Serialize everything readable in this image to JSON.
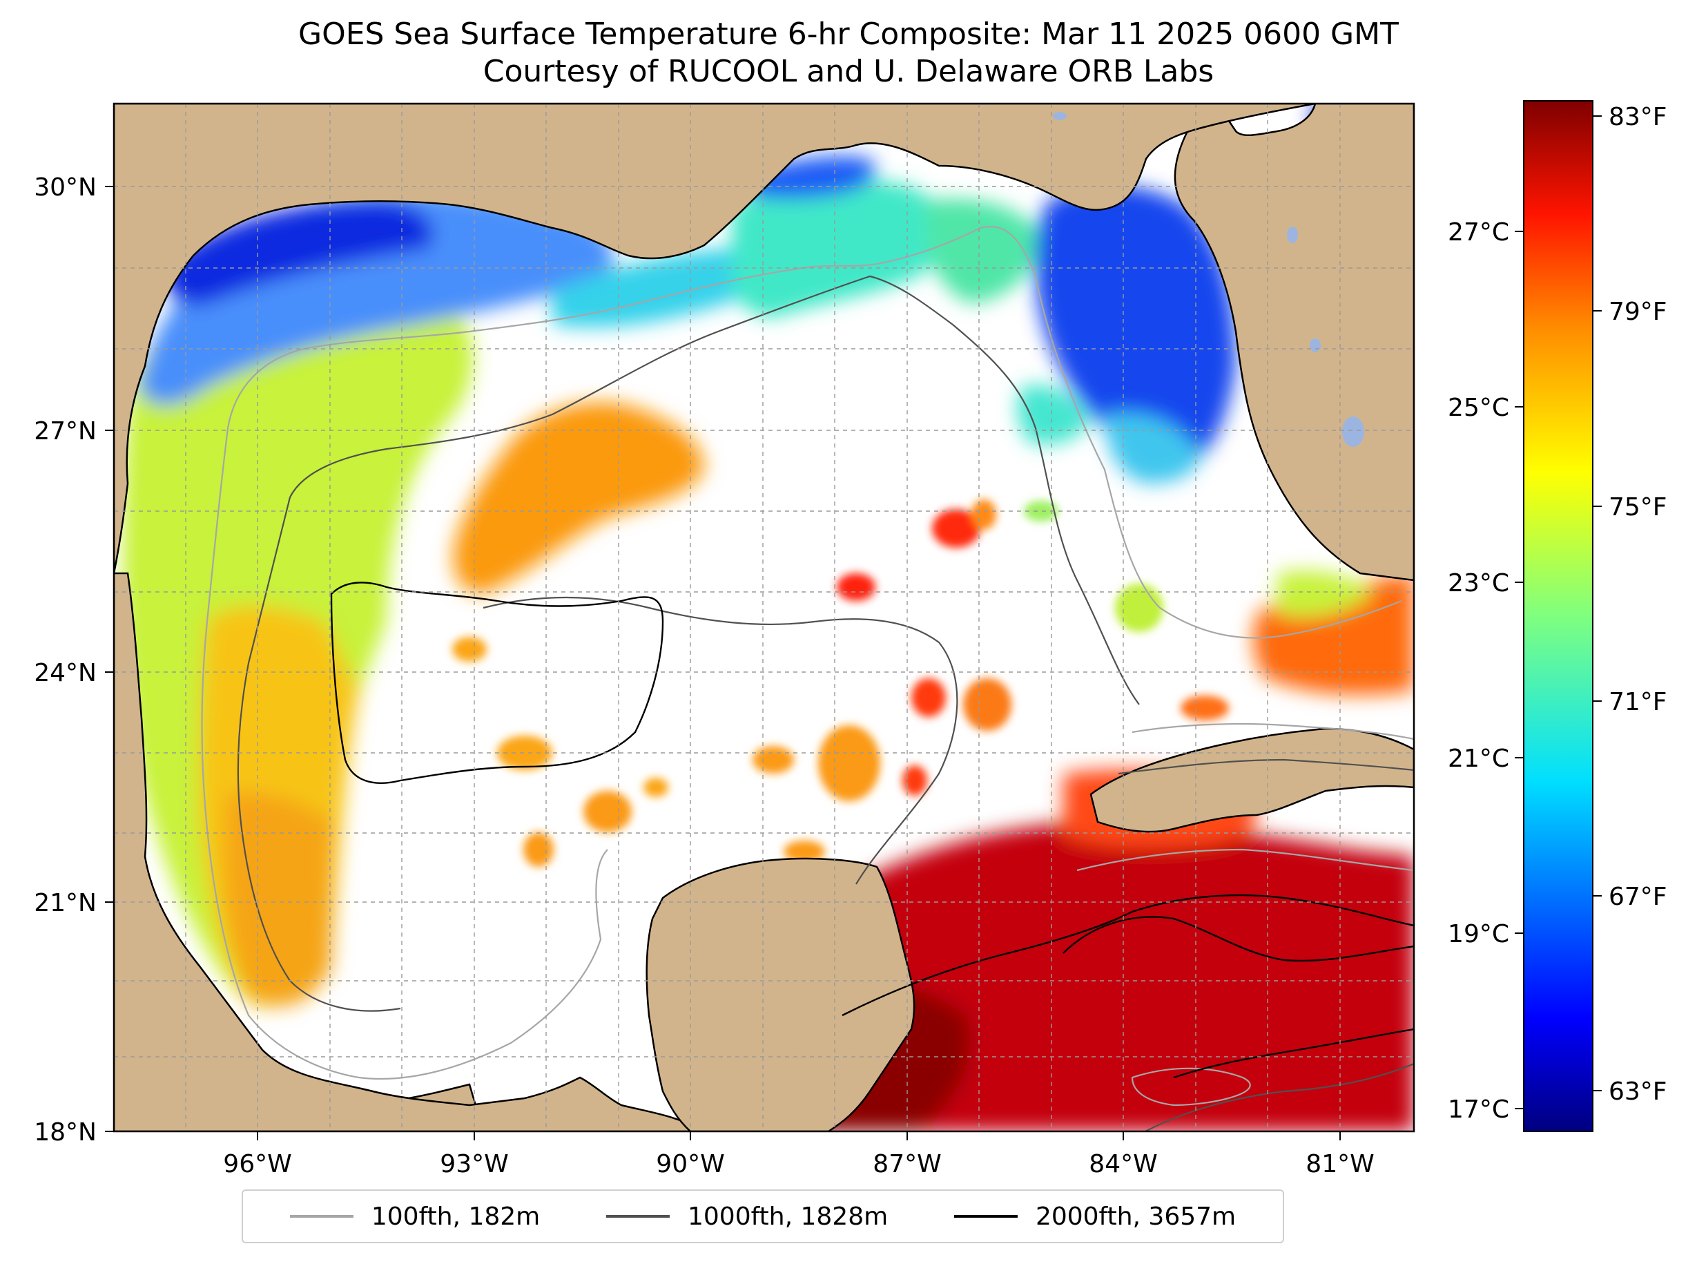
{
  "title": {
    "line1": "GOES Sea Surface Temperature 6-hr Composite: Mar 11 2025 0600 GMT",
    "line2": "Courtesy of RUCOOL and U. Delaware ORB Labs"
  },
  "map": {
    "lat_ticks": [
      "30°N",
      "27°N",
      "24°N",
      "21°N",
      "18°N"
    ],
    "lon_ticks": [
      "96°W",
      "93°W",
      "90°W",
      "87°W",
      "84°W",
      "81°W"
    ],
    "lat_range": [
      18,
      31
    ],
    "lon_range": [
      -98,
      -80
    ],
    "land_color": "#d2b48c",
    "no_data_color": "#ffffff",
    "grid": "dashed"
  },
  "colorbar": {
    "colormap": "jet",
    "fahrenheit_labels": [
      "83°F",
      "79°F",
      "75°F",
      "71°F",
      "67°F",
      "63°F"
    ],
    "celsius_labels": [
      "27°C",
      "25°C",
      "23°C",
      "21°C",
      "19°C",
      "17°C"
    ]
  },
  "legend": {
    "items": [
      {
        "label": "100fth, 182m",
        "color": "#a6a6a6"
      },
      {
        "label": "1000fth, 1828m",
        "color": "#505050"
      },
      {
        "label": "2000fth, 3657m",
        "color": "#000000"
      }
    ]
  }
}
